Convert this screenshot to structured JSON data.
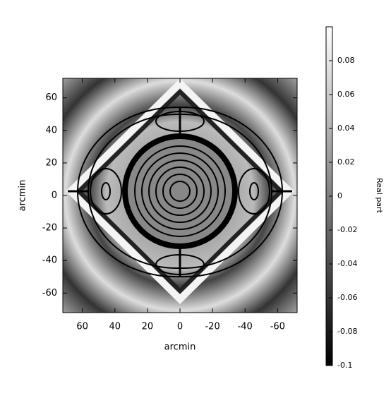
{
  "chart_data": {
    "type": "heatmap",
    "xlabel": "arcmin",
    "ylabel": "arcmin",
    "xlim": [
      72,
      -72
    ],
    "xticks": [
      60,
      40,
      20,
      0,
      -20,
      -40,
      -60
    ],
    "ylim": [
      -72,
      72
    ],
    "yticks": [
      -60,
      -40,
      -20,
      0,
      20,
      40,
      60
    ],
    "colorbar": {
      "label": "Real part",
      "lim": [
        -0.1,
        0.1
      ],
      "ticks": [
        -0.1,
        -0.08,
        -0.06,
        -0.04,
        -0.02,
        0,
        0.02,
        0.04,
        0.06,
        0.08
      ]
    }
  }
}
